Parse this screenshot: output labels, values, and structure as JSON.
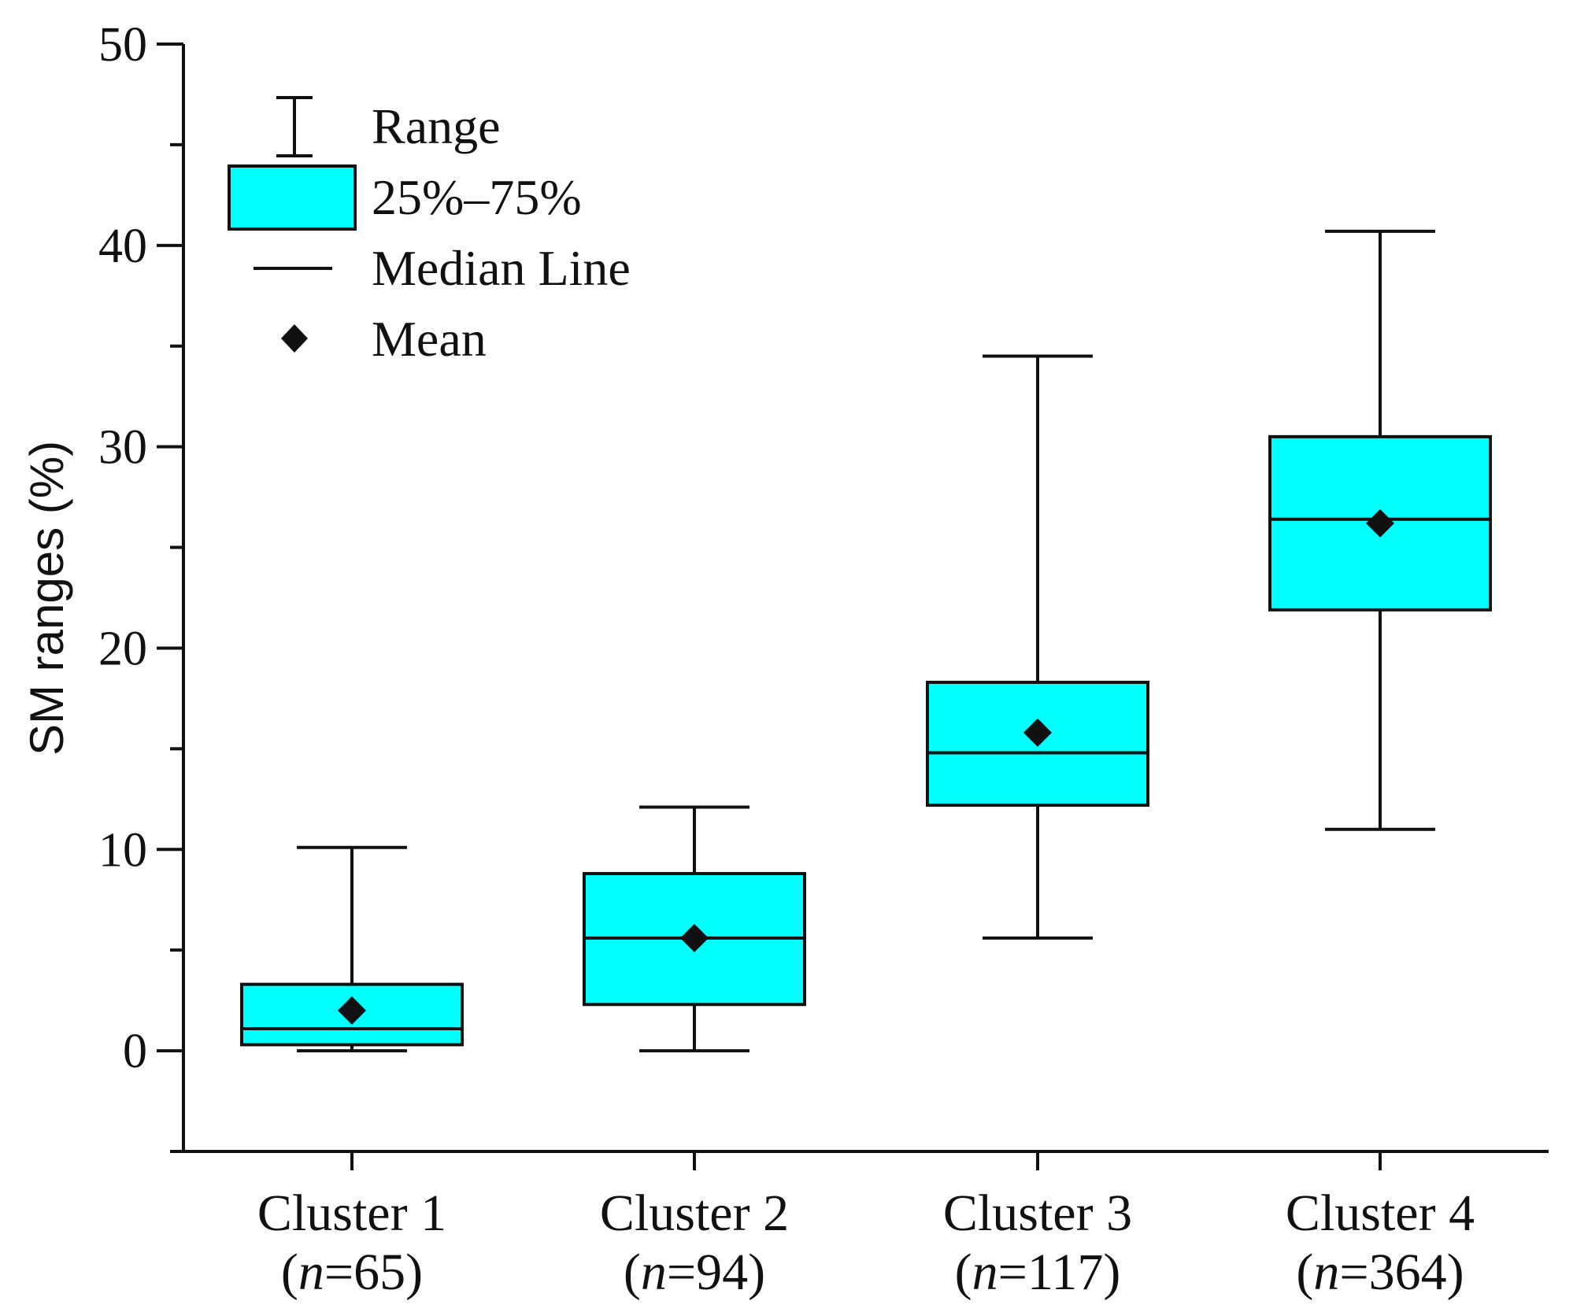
{
  "chart_data": {
    "type": "box",
    "title": "",
    "ylabel": "SM ranges (%)",
    "xlabel": "",
    "ylim": [
      -5,
      50
    ],
    "yticks": [
      0,
      10,
      20,
      30,
      40,
      50
    ],
    "ytick_labels": [
      "0",
      "10",
      "20",
      "30",
      "40",
      "50"
    ],
    "minor_ticks": [
      -5,
      5,
      15,
      25,
      35,
      45
    ],
    "grid": false,
    "legend_position": "top-left",
    "legend": {
      "range_label": "Range",
      "box_label": "25%–75%",
      "median_label": "Median Line",
      "mean_label": "Mean"
    },
    "box_color": "#00ffff",
    "edge_color": "#111111",
    "categories": [
      {
        "name": "Cluster 1",
        "n_prefix": "(",
        "n_italic": "n",
        "n_suffix": "=65)",
        "n": 65,
        "min": 0,
        "q1": 0.3,
        "median": 1.1,
        "q3": 3.3,
        "max": 10.1,
        "mean": 2.0
      },
      {
        "name": "Cluster 2",
        "n_prefix": "(",
        "n_italic": "n",
        "n_suffix": "=94)",
        "n": 94,
        "min": 0,
        "q1": 2.3,
        "median": 5.6,
        "q3": 8.8,
        "max": 12.1,
        "mean": 5.6
      },
      {
        "name": "Cluster 3",
        "n_prefix": "(",
        "n_italic": "n",
        "n_suffix": "=117)",
        "n": 117,
        "min": 5.6,
        "q1": 12.2,
        "median": 14.8,
        "q3": 18.3,
        "max": 34.5,
        "mean": 15.8
      },
      {
        "name": "Cluster 4",
        "n_prefix": "(",
        "n_italic": "n",
        "n_suffix": "=364)",
        "n": 364,
        "min": 11.0,
        "q1": 21.9,
        "median": 26.4,
        "q3": 30.5,
        "max": 40.7,
        "mean": 26.2
      }
    ]
  }
}
